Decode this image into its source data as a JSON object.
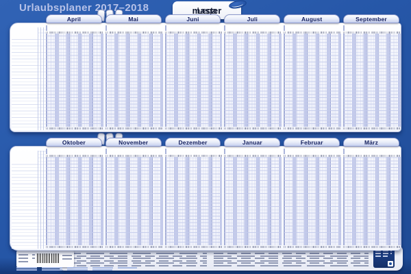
{
  "title": "Urlaubsplaner 2017–2018",
  "brand": {
    "lega": "Lega",
    "master": "master"
  },
  "colors": {
    "background": "#2657a8",
    "board": "#ffffff",
    "month_tab_text": "#131f5e",
    "weekend_stripe": "#a0abdd",
    "title_text": "#b7c2e8",
    "logo_blue": "#1c4a9b"
  },
  "boards": [
    {
      "id": "top",
      "months": [
        {
          "name": "April",
          "weeks": [
            "Woche 14",
            "Woche 15",
            "Woche 16",
            "Woche 17"
          ]
        },
        {
          "name": "Mai",
          "weeks": [
            "Woche 18",
            "Woche 19",
            "Woche 20",
            "Woche 21",
            "Woche 22"
          ]
        },
        {
          "name": "Juni",
          "weeks": [
            "Woche 23",
            "Woche 24",
            "Woche 25",
            "Woche 26"
          ]
        },
        {
          "name": "Juli",
          "weeks": [
            "Woche 27",
            "Woche 28",
            "Woche 29",
            "Woche 30",
            "Woche 31"
          ]
        },
        {
          "name": "August",
          "weeks": [
            "Woche 31",
            "Woche 32",
            "Woche 33",
            "Woche 34",
            "Woche 35"
          ]
        },
        {
          "name": "September",
          "weeks": [
            "Woche 36",
            "Woche 37",
            "Woche 38",
            "Woche 39"
          ]
        }
      ],
      "row_numbers": [
        1,
        2,
        3,
        4,
        5,
        6,
        7,
        8,
        9,
        10,
        11,
        12,
        13,
        14,
        15,
        16,
        17,
        18,
        19,
        20,
        21,
        22,
        23,
        24,
        25,
        26,
        27,
        28
      ]
    },
    {
      "id": "bottom",
      "months": [
        {
          "name": "Oktober",
          "weeks": [
            "Woche 40",
            "Woche 41",
            "Woche 42",
            "Woche 43",
            "Woche 44"
          ]
        },
        {
          "name": "November",
          "weeks": [
            "Woche 45",
            "Woche 46",
            "Woche 47",
            "Woche 48"
          ]
        },
        {
          "name": "Dezember",
          "weeks": [
            "Woche 49",
            "Woche 50",
            "Woche 51",
            "Woche 52"
          ]
        },
        {
          "name": "Januar",
          "weeks": [
            "Woche 1",
            "Woche 2",
            "Woche 3",
            "Woche 4",
            "Woche 5"
          ]
        },
        {
          "name": "Februar",
          "weeks": [
            "Woche 6",
            "Woche 7",
            "Woche 8",
            "Woche 9"
          ]
        },
        {
          "name": "März",
          "weeks": [
            "Woche 10",
            "Woche 11",
            "Woche 12",
            "Woche 13"
          ]
        }
      ],
      "row_numbers": [
        1,
        2,
        3,
        4,
        5,
        6,
        7,
        8,
        9,
        10,
        11,
        12,
        13,
        14,
        15,
        16,
        17,
        18,
        19,
        20,
        21,
        22,
        23,
        24,
        25,
        26,
        27,
        28
      ]
    }
  ]
}
